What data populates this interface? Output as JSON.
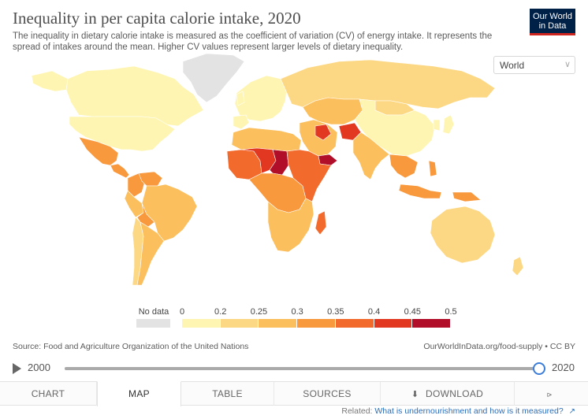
{
  "header": {
    "title": "Inequality in per capita calorie intake, 2020",
    "subtitle": "The inequality in dietary calorie intake is measured as the coefficient of variation (CV) of energy intake. It represents the spread of intakes around the mean. Higher CV values represent larger levels of dietary inequality."
  },
  "logo": {
    "line1": "Our World",
    "line2": "in Data"
  },
  "entity_selector": {
    "value": "World",
    "icon": "chevron-down-icon"
  },
  "legend": {
    "no_data_label": "No data",
    "no_data_color": "#e3e3e3",
    "ticks": [
      "0",
      "0.2",
      "0.25",
      "0.3",
      "0.35",
      "0.4",
      "0.45",
      "0.5"
    ],
    "bins": [
      {
        "from": 0,
        "to": 0.2,
        "color": "#fef5b2"
      },
      {
        "from": 0.2,
        "to": 0.25,
        "color": "#fdd884"
      },
      {
        "from": 0.25,
        "to": 0.3,
        "color": "#fbbf5e"
      },
      {
        "from": 0.3,
        "to": 0.35,
        "color": "#f9993e"
      },
      {
        "from": 0.35,
        "to": 0.4,
        "color": "#f26a2c"
      },
      {
        "from": 0.4,
        "to": 0.45,
        "color": "#e23721"
      },
      {
        "from": 0.45,
        "to": 0.5,
        "color": "#b10e2a"
      }
    ]
  },
  "map": {
    "regions": [
      {
        "name": "Greenland",
        "color": "#e3e3e3"
      },
      {
        "name": "Canada",
        "color": "#fef5b2"
      },
      {
        "name": "United States",
        "color": "#fef5b2"
      },
      {
        "name": "Mexico",
        "color": "#f9993e"
      },
      {
        "name": "Central America",
        "color": "#f9993e"
      },
      {
        "name": "Colombia",
        "color": "#f9993e"
      },
      {
        "name": "Venezuela",
        "color": "#f9993e"
      },
      {
        "name": "Brazil",
        "color": "#fbbf5e"
      },
      {
        "name": "Peru",
        "color": "#fbbf5e"
      },
      {
        "name": "Bolivia",
        "color": "#f9993e"
      },
      {
        "name": "Argentina",
        "color": "#fbbf5e"
      },
      {
        "name": "Chile",
        "color": "#fdd884"
      },
      {
        "name": "Europe",
        "color": "#fef5b2"
      },
      {
        "name": "Russia",
        "color": "#fdd884"
      },
      {
        "name": "North Africa",
        "color": "#fbbf5e"
      },
      {
        "name": "West Africa",
        "color": "#f26a2c"
      },
      {
        "name": "Sahel",
        "color": "#e23721"
      },
      {
        "name": "Chad",
        "color": "#b10e2a"
      },
      {
        "name": "Central Africa",
        "color": "#f9993e"
      },
      {
        "name": "East Africa",
        "color": "#f26a2c"
      },
      {
        "name": "Southern Africa",
        "color": "#fbbf5e"
      },
      {
        "name": "Madagascar",
        "color": "#f26a2c"
      },
      {
        "name": "Middle East",
        "color": "#fbbf5e"
      },
      {
        "name": "Yemen",
        "color": "#b10e2a"
      },
      {
        "name": "Afghanistan",
        "color": "#e23721"
      },
      {
        "name": "Central Asia",
        "color": "#fbbf5e"
      },
      {
        "name": "India",
        "color": "#fbbf5e"
      },
      {
        "name": "China",
        "color": "#fef5b2"
      },
      {
        "name": "Mongolia",
        "color": "#fdd884"
      },
      {
        "name": "Southeast Asia",
        "color": "#f9993e"
      },
      {
        "name": "Indonesia",
        "color": "#f9993e"
      },
      {
        "name": "Papua New Guinea",
        "color": "#f9993e"
      },
      {
        "name": "Australia",
        "color": "#fdd884"
      },
      {
        "name": "Japan",
        "color": "#fef5b2"
      },
      {
        "name": "New Zealand",
        "color": "#fdd884"
      }
    ]
  },
  "footer": {
    "source": "Source: Food and Agriculture Organization of the United Nations",
    "cite": "OurWorldInData.org/food-supply • CC BY"
  },
  "timeline": {
    "start_year": "2000",
    "end_year": "2020",
    "progress": 1.0
  },
  "tabs": [
    {
      "label": "CHART",
      "icon": ""
    },
    {
      "label": "MAP",
      "icon": ""
    },
    {
      "label": "TABLE",
      "icon": ""
    },
    {
      "label": "SOURCES",
      "icon": ""
    },
    {
      "label": "DOWNLOAD",
      "icon": "download-icon"
    },
    {
      "label": "",
      "icon": "share-icon"
    }
  ],
  "active_tab": "MAP",
  "related": {
    "prefix": "Related:",
    "link_text": "What is undernourishment and how is it measured?",
    "icon": "external-link-icon"
  }
}
